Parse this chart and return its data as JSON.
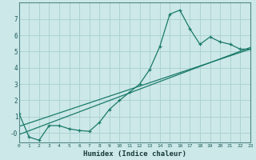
{
  "xlabel": "Humidex (Indice chaleur)",
  "bg_color": "#cce8e8",
  "grid_color": "#aacfcf",
  "line_color": "#1a7a6a",
  "xlim": [
    0,
    23
  ],
  "ylim": [
    -0.6,
    8.0
  ],
  "yticks": [
    0,
    1,
    2,
    3,
    4,
    5,
    6,
    7
  ],
  "ytick_labels": [
    "-0",
    "1",
    "2",
    "3",
    "4",
    "5",
    "6",
    "7"
  ],
  "xticks": [
    0,
    1,
    2,
    3,
    4,
    5,
    6,
    7,
    8,
    9,
    10,
    11,
    12,
    13,
    14,
    15,
    16,
    17,
    18,
    19,
    20,
    21,
    22,
    23
  ],
  "main_x": [
    0,
    1,
    2,
    3,
    4,
    5,
    6,
    7,
    8,
    9,
    10,
    11,
    12,
    13,
    14,
    15,
    16,
    17,
    18,
    19,
    20,
    21,
    22,
    23
  ],
  "main_y": [
    1.2,
    -0.25,
    -0.45,
    0.45,
    0.45,
    0.25,
    0.15,
    0.1,
    0.65,
    1.45,
    2.0,
    2.5,
    3.0,
    3.9,
    5.3,
    7.3,
    7.55,
    6.4,
    5.45,
    5.9,
    5.6,
    5.45,
    5.15,
    5.15
  ],
  "line2_x": [
    0,
    23
  ],
  "line2_y": [
    -0.1,
    5.25
  ],
  "line3_x": [
    0,
    23
  ],
  "line3_y": [
    0.4,
    5.15
  ]
}
